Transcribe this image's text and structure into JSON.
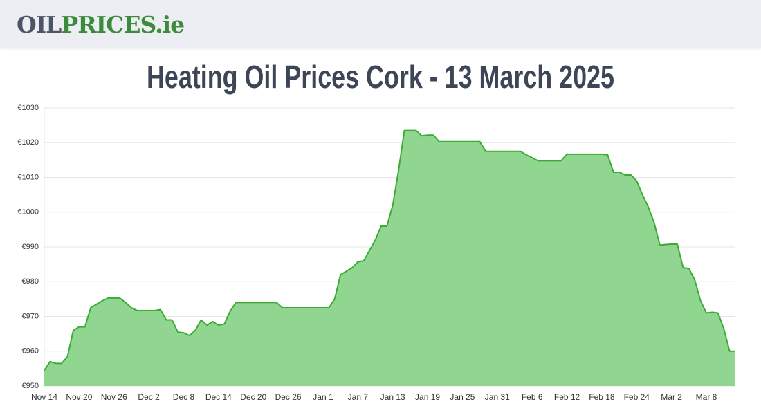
{
  "header": {
    "logo": [
      "OIL",
      "PRICES",
      ".ie"
    ]
  },
  "chart_data": {
    "type": "area",
    "title": "Heating Oil Prices Cork - 13 March 2025",
    "categories": [
      "Nov 14",
      null,
      null,
      null,
      null,
      null,
      "Nov 20",
      null,
      null,
      null,
      null,
      null,
      "Nov 26",
      null,
      null,
      null,
      null,
      null,
      "Dec 2",
      null,
      null,
      null,
      null,
      null,
      "Dec 8",
      null,
      null,
      null,
      null,
      null,
      "Dec 14",
      null,
      null,
      null,
      null,
      null,
      "Dec 20",
      null,
      null,
      null,
      null,
      null,
      "Dec 26",
      null,
      null,
      null,
      null,
      null,
      "Jan 1",
      null,
      null,
      null,
      null,
      null,
      "Jan 7",
      null,
      null,
      null,
      null,
      null,
      "Jan 13",
      null,
      null,
      null,
      null,
      null,
      "Jan 19",
      null,
      null,
      null,
      null,
      null,
      "Jan 25",
      null,
      null,
      null,
      null,
      null,
      "Jan 31",
      null,
      null,
      null,
      null,
      null,
      "Feb 6",
      null,
      null,
      null,
      null,
      null,
      "Feb 12",
      null,
      null,
      null,
      null,
      null,
      "Feb 18",
      null,
      null,
      null,
      null,
      null,
      "Feb 24",
      null,
      null,
      null,
      null,
      null,
      "Mar 2",
      null,
      null,
      null,
      null,
      null,
      "Mar 8",
      null,
      null,
      null,
      null,
      null
    ],
    "values": [
      954.5,
      957,
      956.5,
      956.5,
      958.5,
      966,
      967,
      967,
      972.5,
      973.5,
      974.5,
      975.3,
      975.3,
      975.3,
      974,
      972.5,
      971.7,
      971.7,
      971.7,
      971.7,
      972,
      969,
      969,
      965.5,
      965.3,
      964.5,
      966,
      969,
      967.5,
      968.5,
      967.5,
      967.8,
      971.5,
      974,
      974,
      974,
      974,
      974,
      974,
      974,
      974,
      972.5,
      972.5,
      972.5,
      972.5,
      972.5,
      972.5,
      972.5,
      972.5,
      972.5,
      975,
      982,
      983,
      984,
      985.7,
      986,
      989,
      992,
      996,
      996,
      1002,
      1012,
      1023.5,
      1023.5,
      1023.5,
      1022,
      1022.2,
      1022.2,
      1020.3,
      1020.3,
      1020.3,
      1020.3,
      1020.3,
      1020.3,
      1020.3,
      1020.3,
      1017.5,
      1017.5,
      1017.5,
      1017.5,
      1017.5,
      1017.5,
      1017.5,
      1016.5,
      1015.7,
      1014.8,
      1014.8,
      1014.8,
      1014.8,
      1014.8,
      1016.7,
      1016.7,
      1016.7,
      1016.7,
      1016.7,
      1016.7,
      1016.7,
      1016.5,
      1011.5,
      1011.5,
      1010.7,
      1010.7,
      1009,
      1005,
      1001.5,
      997,
      990.5,
      990.7,
      990.8,
      990.8,
      984,
      983.8,
      980.5,
      974.5,
      971,
      971.2,
      971,
      966.5,
      960,
      960
    ],
    "color": "#3cab36",
    "area_color": "#90d690",
    "ylim": [
      950,
      1030
    ],
    "yticks": [
      {
        "value": 950,
        "label": "€950"
      },
      {
        "value": 960,
        "label": "€960"
      },
      {
        "value": 970,
        "label": "€970"
      },
      {
        "value": 980,
        "label": "€980"
      },
      {
        "value": 990,
        "label": "€990"
      },
      {
        "value": 1000,
        "label": "€1000"
      },
      {
        "value": 1010,
        "label": "€1010"
      },
      {
        "value": 1020,
        "label": "€1020"
      },
      {
        "value": 1030,
        "label": "€1030"
      }
    ],
    "grid": true
  }
}
